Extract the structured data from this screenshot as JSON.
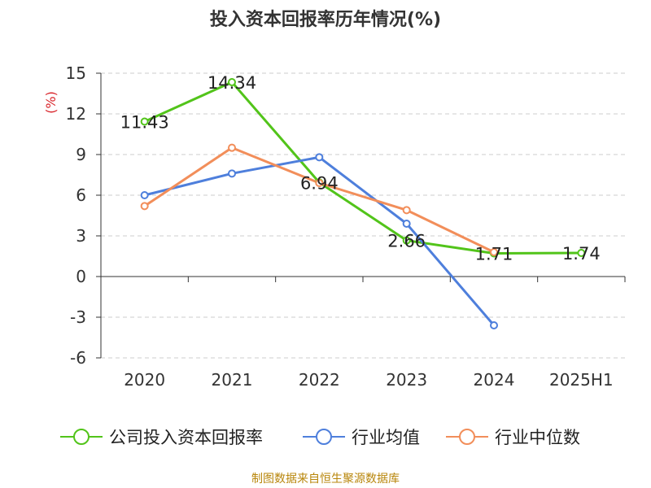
{
  "chart_data": {
    "type": "line",
    "title": "投入资本回报率历年情况(%)",
    "ylabel": "(%)",
    "categories": [
      "2020",
      "2021",
      "2022",
      "2023",
      "2024",
      "2025H1"
    ],
    "ylim": [
      -6,
      15
    ],
    "yticks": [
      15,
      12,
      9,
      6,
      3,
      0,
      -3,
      -6
    ],
    "grid": true,
    "legend_position": "bottom",
    "series": [
      {
        "name": "公司投入资本回报率",
        "color": "#52c41a",
        "values": [
          11.43,
          14.34,
          6.94,
          2.66,
          1.71,
          1.74
        ],
        "labels": [
          "11.43",
          "14.34",
          "6.94",
          "2.66",
          "1.71",
          "1.74"
        ]
      },
      {
        "name": "行业均值",
        "color": "#4e7fdc",
        "values": [
          6.0,
          7.6,
          8.8,
          3.9,
          -3.6,
          null
        ]
      },
      {
        "name": "行业中位数",
        "color": "#f28e5a",
        "values": [
          5.2,
          9.5,
          6.9,
          4.9,
          1.8,
          null
        ]
      }
    ]
  },
  "source_text": "制图数据来自恒生聚源数据库"
}
